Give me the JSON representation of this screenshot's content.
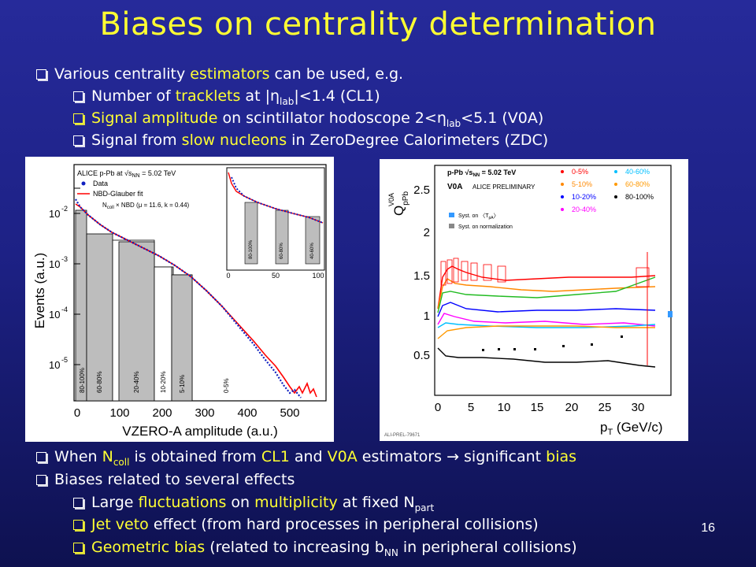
{
  "title": "Biases on centrality determination",
  "bullets_top": {
    "b1": {
      "pre": "Various centrality ",
      "hl": "estimators",
      "post": " can be used, e.g."
    },
    "b2": {
      "pre": "Number of ",
      "hl": "tracklets",
      "post1": " at |",
      "eta": "η",
      "sub": "lab",
      "post2": "|<1.4 (CL1)"
    },
    "b3": {
      "hl": "Signal amplitude",
      "post1": " on scintillator hodoscope 2<",
      "eta": "η",
      "sub": "lab",
      "post2": "<5.1   (V0A)"
    },
    "b4": {
      "pre": "Signal from ",
      "hl": "slow nucleons",
      "post": " in ZeroDegree Calorimeters (ZDC)"
    }
  },
  "bullets_bottom": {
    "b5": {
      "pre": "When ",
      "n": "N",
      "nsub": "coll",
      "mid1": "  is obtained from ",
      "cl1": "CL1",
      "mid2": " and ",
      "v0a": "V0A",
      "mid3": " estimators ",
      "arrow": "→",
      "mid4": " significant ",
      "bias": "bias"
    },
    "b6": {
      "text": "Biases related to several effects"
    },
    "b7": {
      "pre": "Large ",
      "hl1": "fluctuations",
      "mid": " on ",
      "hl2": "multiplicity",
      "post": " at fixed N",
      "sub": "part"
    },
    "b8": {
      "hl": "Jet veto",
      "post": " effect (from hard processes in peripheral collisions)"
    },
    "b9": {
      "hl": "Geometric bias",
      "post1": " (related to increasing b",
      "sub": "NN",
      "post2": " in peripheral collisions)"
    }
  },
  "page_number": "16",
  "left_plot": {
    "legend_title": "ALICE p-Pb at √s",
    "legend_title_sub": "NN",
    "legend_title_post": " = 5.02 TeV",
    "legend_data": "Data",
    "legend_fit": "NBD-Glauber fit",
    "formula": "N",
    "formula_sub": "coll",
    "formula_post": " × NBD (μ = 11.6, k = 0.44)",
    "ylabel": "Events (a.u.)",
    "xlabel": "VZERO-A amplitude (a.u.)",
    "xticks": [
      "0",
      "100",
      "200",
      "300",
      "400",
      "500"
    ],
    "yticks": [
      "10",
      "10",
      "10",
      "10",
      "10"
    ],
    "yexp": [
      "-2",
      "-3",
      "-4",
      "-5",
      "-6"
    ],
    "bins": [
      "80-100%",
      "60-80%",
      "20-40%",
      "10-20%",
      "5-10%",
      "0-5%"
    ],
    "inset_bins": [
      "80-100%",
      "60-80%",
      "40-60%"
    ],
    "inset_xticks": [
      "0",
      "50",
      "100"
    ]
  },
  "right_plot": {
    "header": "p-Pb √s",
    "header_sub": "NN",
    "header_post": " = 5.02 TeV",
    "estimator": "V0A",
    "prelim": "ALICE PRELIMINARY",
    "ylabel": "Q",
    "ylabel_sup": "V0A",
    "ylabel_sub": "pPb",
    "xlabel": "p",
    "xlabel_sub": "T",
    "xlabel_post": " (GeV/c)",
    "xticks": [
      "0",
      "5",
      "10",
      "15",
      "20",
      "25",
      "30"
    ],
    "yticks": [
      "0.5",
      "1",
      "1.5",
      "2",
      "2.5"
    ],
    "syst1": "Syst. on 〈T",
    "syst1_sub": "pA",
    "syst1_post": "〉",
    "syst2": "Syst. on normalization",
    "footer": "ALI-PREL-79671",
    "legend": [
      {
        "label": "0-5%",
        "color": "#ff0000"
      },
      {
        "label": "5-10%",
        "color": "#ff8800"
      },
      {
        "label": "10-20%",
        "color": "#0000ff"
      },
      {
        "label": "20-40%",
        "color": "#ff00ff"
      },
      {
        "label": "40-60%",
        "color": "#00bfff"
      },
      {
        "label": "60-80%",
        "color": "#ff9900"
      },
      {
        "label": "80-100%",
        "color": "#000000"
      }
    ]
  },
  "colors": {
    "accent": "#ffff33",
    "text": "#ffffff",
    "bg": "#1d2185"
  }
}
